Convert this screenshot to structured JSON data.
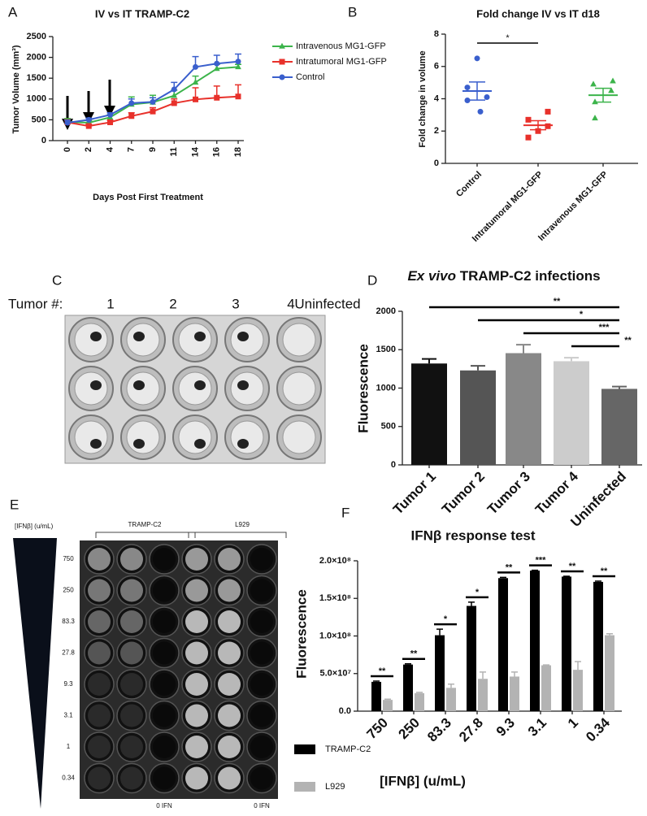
{
  "chart_data": [
    {
      "panel": "A",
      "type": "line",
      "title": "IV vs IT TRAMP-C2",
      "x_label": "Days Post First Treatment",
      "y_label": "Tumor Volume  (mm³)",
      "categories": [
        "0",
        "2",
        "4",
        "7",
        "9",
        "11",
        "14",
        "16",
        "18"
      ],
      "ylim": [
        0,
        2500
      ],
      "yticks": [
        0,
        500,
        1000,
        1500,
        2000,
        2500
      ],
      "series": [
        {
          "name": "Intravenous MG1-GFP",
          "color": "#3cb44b",
          "marker": "triangle",
          "values": [
            450,
            430,
            560,
            870,
            920,
            1080,
            1400,
            1730,
            1770
          ],
          "errors": [
            80,
            50,
            60,
            180,
            170,
            130,
            150,
            100,
            60
          ]
        },
        {
          "name": "Intratumoral MG1-GFP",
          "color": "#e8312b",
          "marker": "square",
          "values": [
            440,
            350,
            440,
            590,
            700,
            900,
            990,
            1030,
            1060
          ],
          "errors": [
            60,
            40,
            50,
            80,
            90,
            100,
            280,
            280,
            280
          ]
        },
        {
          "name": "Control",
          "color": "#3a5fcd",
          "marker": "circle",
          "values": [
            430,
            500,
            620,
            900,
            930,
            1230,
            1770,
            1850,
            1900
          ],
          "errors": [
            60,
            40,
            50,
            100,
            100,
            170,
            250,
            200,
            180
          ]
        }
      ]
    },
    {
      "panel": "B",
      "type": "dot",
      "title": "Fold change IV vs IT d18",
      "y_label": "Fold change in volume",
      "categories": [
        "Control",
        "Intratumoral MG1-GFP",
        "Intravenous MG1-GFP"
      ],
      "colors": [
        "#3a5fcd",
        "#e8312b",
        "#3cb44b"
      ],
      "markers": [
        "circle",
        "square",
        "triangle"
      ],
      "points": [
        [
          6.5,
          4.7,
          4.1,
          3.9,
          3.2
        ],
        [
          3.2,
          2.7,
          2.3,
          2.0,
          1.6
        ],
        [
          5.1,
          4.9,
          4.5,
          3.8,
          2.8
        ]
      ],
      "means": [
        4.48,
        2.36,
        4.22
      ],
      "errors": [
        0.56,
        0.28,
        0.43
      ],
      "comparisons": [
        {
          "from": "Control",
          "to": "Intratumoral MG1-GFP",
          "label": "*"
        }
      ],
      "ylim": [
        0,
        8
      ],
      "yticks": [
        0,
        2,
        4,
        6,
        8
      ]
    },
    {
      "panel": "D",
      "type": "bar",
      "title_italic": "Ex vivo",
      "title": "TRAMP-C2 infections",
      "y_label": "Fluorescence",
      "categories": [
        "Tumor 1",
        "Tumor 2",
        "Tumor 3",
        "Tumor 4",
        "Uninfected"
      ],
      "values": [
        1320,
        1230,
        1455,
        1350,
        990
      ],
      "errors": [
        60,
        60,
        110,
        45,
        30
      ],
      "colors": [
        "#111111",
        "#555555",
        "#888888",
        "#cccccc",
        "#666666"
      ],
      "ylim": [
        0,
        2000
      ],
      "yticks": [
        0,
        500,
        1000,
        1500,
        2000
      ],
      "comparisons": [
        {
          "from": "Tumor 1",
          "to": "Uninfected",
          "label": "**"
        },
        {
          "from": "Tumor 2",
          "to": "Uninfected",
          "label": "*"
        },
        {
          "from": "Tumor 3",
          "to": "Uninfected",
          "label": "***"
        },
        {
          "from": "Tumor 4",
          "to": "Uninfected",
          "label": "**"
        }
      ]
    },
    {
      "panel": "F",
      "type": "grouped_bar",
      "title": "IFNβ response test",
      "x_label": "[IFNβ] (u/mL)",
      "y_label": "Fluorescence",
      "categories": [
        "750",
        "250",
        "83.3",
        "27.8",
        "9.3",
        "3.1",
        "1",
        "0.34"
      ],
      "ylim": [
        0,
        200000000
      ],
      "yticks": [
        {
          "value": 0,
          "label": "0.0"
        },
        {
          "value": 50000000,
          "label": "5.0×10⁷"
        },
        {
          "value": 100000000,
          "label": "1.0×10⁸"
        },
        {
          "value": 150000000,
          "label": "1.5×10⁸"
        },
        {
          "value": 200000000,
          "label": "2.0×10⁸"
        }
      ],
      "series": [
        {
          "name": "TRAMP-C2",
          "color": "#000000",
          "values": [
            39000000,
            62000000,
            101000000,
            140000000,
            177000000,
            187000000,
            179000000,
            172000000
          ],
          "errors": [
            1000000,
            1000000,
            8000000,
            5000000,
            1000000,
            500000,
            500000,
            1000000
          ]
        },
        {
          "name": "L929",
          "color": "#b3b3b3",
          "values": [
            15000000,
            24000000,
            31000000,
            43000000,
            46000000,
            61000000,
            55000000,
            101000000
          ],
          "errors": [
            1000000,
            1000000,
            5000000,
            9000000,
            6000000,
            500000,
            11000000,
            2000000
          ]
        }
      ],
      "significance": [
        "**",
        "**",
        "*",
        "*",
        "**",
        "***",
        "**",
        "**"
      ],
      "legend": "bottom-left"
    }
  ],
  "images": [
    {
      "panel": "C",
      "label": "Tumor #:",
      "columns": [
        "1",
        "2",
        "3",
        "4",
        "Uninfected"
      ]
    },
    {
      "panel": "E",
      "axis_label": "[IFNβ] (u/mL)",
      "groups": [
        "TRAMP-C2",
        "L929"
      ],
      "rows": [
        "750",
        "250",
        "83.3",
        "27.8",
        "9.3",
        "3.1",
        "1",
        "0.34"
      ],
      "footer": [
        "0 IFN",
        "0 IFN"
      ]
    }
  ]
}
